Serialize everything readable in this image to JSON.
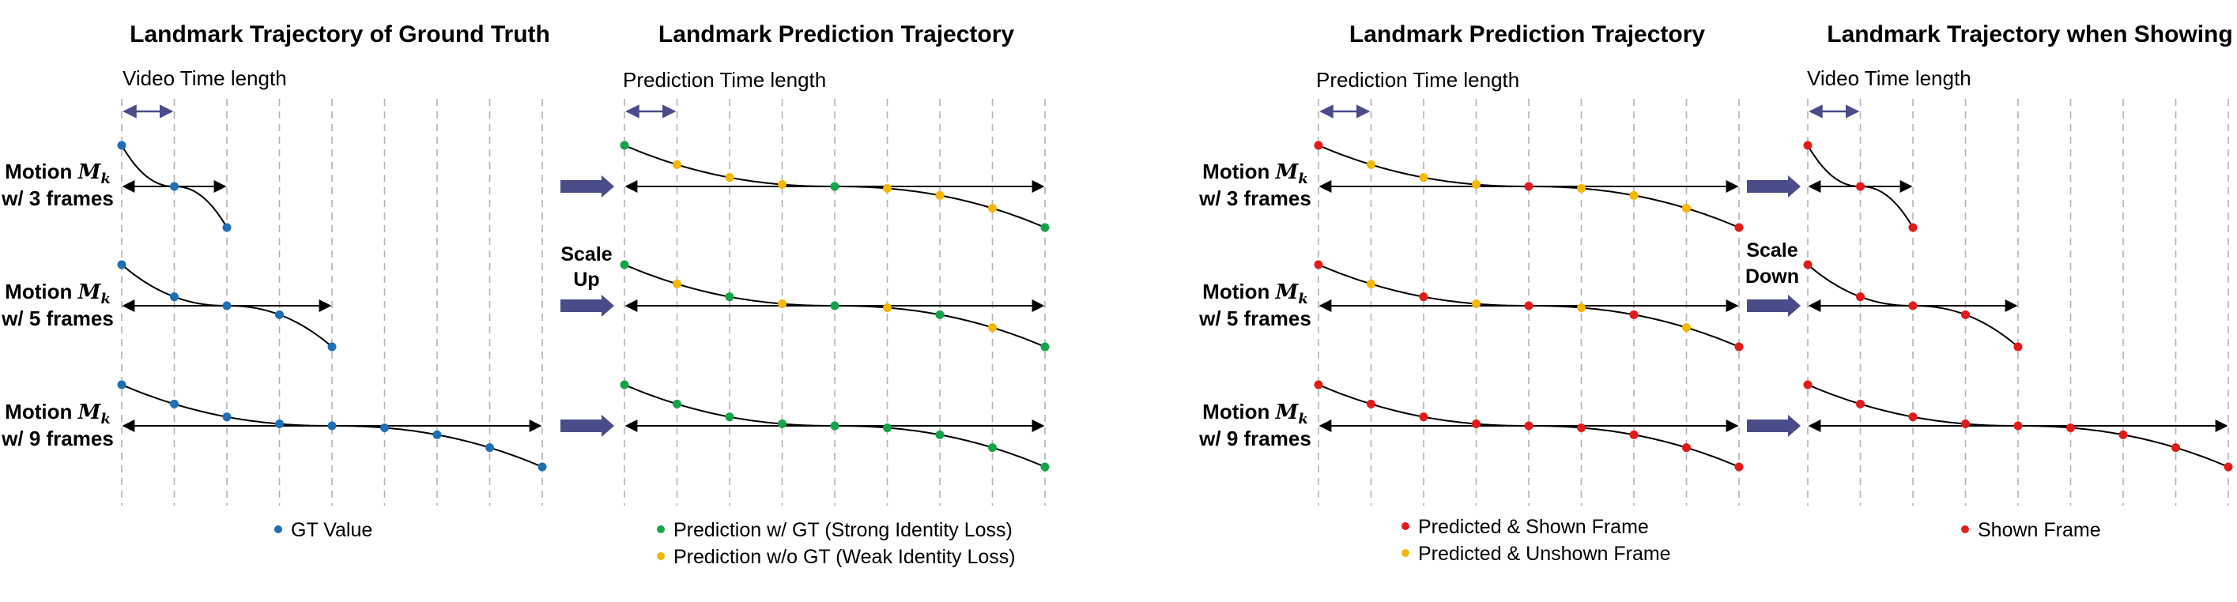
{
  "colors": {
    "gt": "#1f6fb4",
    "strong": "#16a34a",
    "weak": "#f5b700",
    "shown": "#e21b1b",
    "arrow": "#4a4c8a",
    "guide": "#b3b3b3"
  },
  "motion": {
    "prefix": "Motion ",
    "symbol": "M",
    "sub": "k"
  },
  "panels": [
    {
      "id": "gt",
      "title": "Landmark Trajectory of Ground Truth",
      "time_label": "Video Time length",
      "rows": [
        {
          "frames_label": "w/ 3 frames",
          "dots": [
            "gt",
            "gt",
            "gt"
          ]
        },
        {
          "frames_label": "w/ 5 frames",
          "dots": [
            "gt",
            "gt",
            "gt",
            "gt",
            "gt"
          ]
        },
        {
          "frames_label": "w/ 9 frames",
          "dots": [
            "gt",
            "gt",
            "gt",
            "gt",
            "gt",
            "gt",
            "gt",
            "gt",
            "gt"
          ]
        }
      ],
      "legend": [
        {
          "color": "gt",
          "text": "GT Value"
        }
      ]
    },
    {
      "id": "pred1",
      "title": "Landmark Prediction Trajectory",
      "time_label": "Prediction Time length",
      "rows": [
        {
          "dots": [
            "strong",
            "weak",
            "weak",
            "weak",
            "strong",
            "weak",
            "weak",
            "weak",
            "strong"
          ]
        },
        {
          "dots": [
            "strong",
            "weak",
            "strong",
            "weak",
            "strong",
            "weak",
            "strong",
            "weak",
            "strong"
          ]
        },
        {
          "dots": [
            "strong",
            "strong",
            "strong",
            "strong",
            "strong",
            "strong",
            "strong",
            "strong",
            "strong"
          ]
        }
      ],
      "legend": [
        {
          "color": "strong",
          "text": "Prediction w/ GT (Strong Identity Loss)"
        },
        {
          "color": "weak",
          "text": "Prediction w/o GT (Weak Identity Loss)"
        }
      ]
    },
    {
      "id": "pred2",
      "title": "Landmark Prediction Trajectory",
      "time_label": "Prediction Time length",
      "rows": [
        {
          "frames_label": "w/ 3 frames",
          "dots": [
            "shown",
            "weak",
            "weak",
            "weak",
            "shown",
            "weak",
            "weak",
            "weak",
            "shown"
          ]
        },
        {
          "frames_label": "w/ 5 frames",
          "dots": [
            "shown",
            "weak",
            "shown",
            "weak",
            "shown",
            "weak",
            "shown",
            "weak",
            "shown"
          ]
        },
        {
          "frames_label": "w/ 9 frames",
          "dots": [
            "shown",
            "shown",
            "shown",
            "shown",
            "shown",
            "shown",
            "shown",
            "shown",
            "shown"
          ]
        }
      ],
      "legend": [
        {
          "color": "shown",
          "text": "Predicted & Shown Frame"
        },
        {
          "color": "weak",
          "text": "Predicted & Unshown Frame"
        }
      ]
    },
    {
      "id": "show",
      "title": "Landmark Trajectory when Showing",
      "time_label": "Video Time length",
      "rows": [
        {
          "dots": [
            "shown",
            "shown",
            "shown"
          ]
        },
        {
          "dots": [
            "shown",
            "shown",
            "shown",
            "shown",
            "shown"
          ]
        },
        {
          "dots": [
            "shown",
            "shown",
            "shown",
            "shown",
            "shown",
            "shown",
            "shown",
            "shown",
            "shown"
          ]
        }
      ],
      "legend": [
        {
          "color": "shown",
          "text": "Shown Frame"
        }
      ]
    }
  ],
  "transitions": [
    {
      "id": "scale-up",
      "label_lines": [
        "Scale",
        "Up"
      ]
    },
    {
      "id": "scale-down",
      "label_lines": [
        "Scale",
        "Down"
      ]
    }
  ]
}
